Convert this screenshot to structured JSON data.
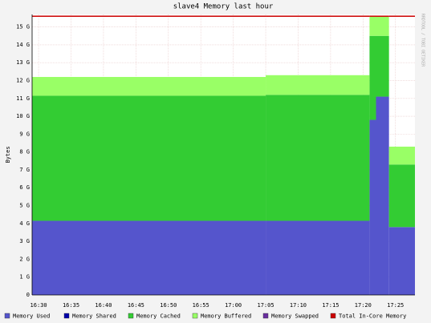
{
  "chart_data": {
    "type": "stacked-step-area",
    "title": "slave4 Memory last hour",
    "y_label": "Bytes",
    "watermark": "RRDTOOL / TOBI OETIKER",
    "x": [
      "16:29",
      "17:05",
      "17:21",
      "17:22",
      "17:24"
    ],
    "xlim": [
      "16:29",
      "17:28"
    ],
    "xticks": [
      "16:30",
      "16:35",
      "16:40",
      "16:45",
      "16:50",
      "16:55",
      "17:00",
      "17:05",
      "17:10",
      "17:15",
      "17:20",
      "17:25"
    ],
    "ylim": [
      0,
      15.7
    ],
    "yticks": [
      0,
      {
        "value": 1,
        "label": "1 G"
      },
      {
        "value": 2,
        "label": "2 G"
      },
      {
        "value": 3,
        "label": "3 G"
      },
      {
        "value": 4,
        "label": "4 G"
      },
      {
        "value": 5,
        "label": "5 G"
      },
      {
        "value": 6,
        "label": "6 G"
      },
      {
        "value": 7,
        "label": "7 G"
      },
      {
        "value": 8,
        "label": "8 G"
      },
      {
        "value": 9,
        "label": "9 G"
      },
      {
        "value": 10,
        "label": "10 G"
      },
      {
        "value": 11,
        "label": "11 G"
      },
      {
        "value": 12,
        "label": "12 G"
      },
      {
        "value": 13,
        "label": "13 G"
      },
      {
        "value": 14,
        "label": "14 G"
      },
      {
        "value": 15,
        "label": "15 G"
      }
    ],
    "grid": true,
    "series": [
      {
        "name": "Memory Used",
        "color": "#5555cc",
        "values": [
          4.15,
          4.15,
          9.8,
          11.1,
          3.8
        ]
      },
      {
        "name": "Memory Shared",
        "color": "#0000aa",
        "values": [
          0,
          0,
          0,
          0,
          0
        ]
      },
      {
        "name": "Memory Cached",
        "color": "#33cc33",
        "values": [
          7.0,
          7.05,
          4.7,
          3.4,
          3.5
        ]
      },
      {
        "name": "Memory Buffered",
        "color": "#99ff66",
        "values": [
          1.05,
          1.1,
          1.1,
          1.1,
          1.0
        ]
      },
      {
        "name": "Memory Swapped",
        "color": "#6a2fa0",
        "values": [
          0,
          0,
          0,
          0,
          0
        ]
      },
      {
        "name": "Total In-Core Memory",
        "color": "#cc0000",
        "type": "line",
        "values": [
          15.6,
          15.6,
          15.6,
          15.6,
          15.6
        ]
      }
    ]
  }
}
